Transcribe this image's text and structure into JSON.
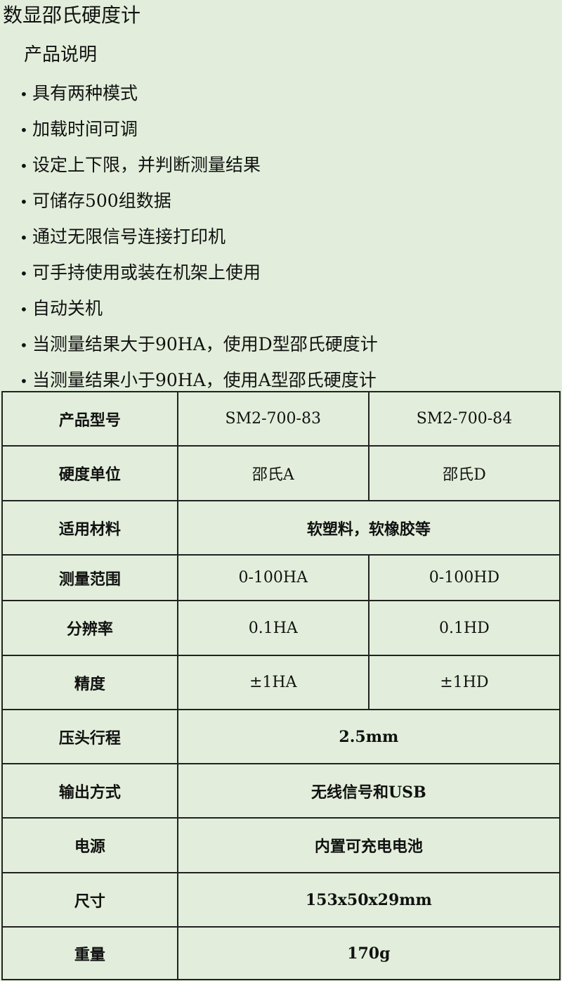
{
  "title": "数显邵氏硬度计",
  "subtitle": "产品说明",
  "features": [
    "具有两种模式",
    "加载时间可调",
    "设定上下限，并判断测量结果",
    "可储存500组数据",
    "通过无限信号连接打印机",
    "可手持使用或装在机架上使用",
    "自动关机",
    "当测量结果大于90HA，使用D型邵氏硬度计",
    "当测量结果小于90HA，使用A型邵氏硬度计"
  ],
  "bullet": "•",
  "table": [
    {
      "label": "产品型号",
      "a": "SM2-700-83",
      "b": "SM2-700-84"
    },
    {
      "label": "硬度单位",
      "a": "邵氏A",
      "b": "邵氏D"
    },
    {
      "label": "适用材料",
      "merged": "软塑料，软橡胶等"
    },
    {
      "label": "测量范围",
      "a": "0-100HA",
      "b": "0-100HD"
    },
    {
      "label": "分辨率",
      "a": "0.1HA",
      "b": "0.1HD"
    },
    {
      "label": "精度",
      "a": "±1HA",
      "b": "±1HD"
    },
    {
      "label": "压头行程",
      "merged": "2.5mm"
    },
    {
      "label": "输出方式",
      "merged": "无线信号和USB"
    },
    {
      "label": "电源",
      "merged": "内置可充电电池"
    },
    {
      "label": "尺寸",
      "merged": "153x50x29mm"
    },
    {
      "label": "重量",
      "merged": "170g"
    }
  ]
}
